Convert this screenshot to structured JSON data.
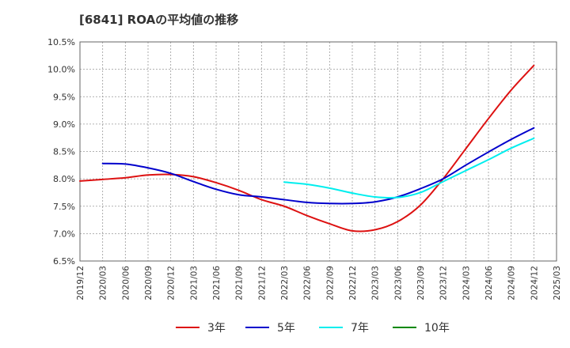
{
  "title": "[6841]  ROAの平均値の推移",
  "chart_data": {
    "type": "line",
    "title": "[6841]  ROAの平均値の推移",
    "xlabel": "",
    "ylabel": "",
    "x": [
      "2019/12",
      "2020/03",
      "2020/06",
      "2020/09",
      "2020/12",
      "2021/03",
      "2021/06",
      "2021/09",
      "2021/12",
      "2022/03",
      "2022/06",
      "2022/09",
      "2022/12",
      "2023/03",
      "2023/06",
      "2023/09",
      "2023/12",
      "2024/03",
      "2024/06",
      "2024/09",
      "2024/12",
      "2025/03"
    ],
    "y_ticks": [
      "6.5%",
      "7.0%",
      "7.5%",
      "8.0%",
      "8.5%",
      "9.0%",
      "9.5%",
      "10.0%",
      "10.5%"
    ],
    "ylim": [
      6.5,
      10.5
    ],
    "grid": true,
    "legend_position": "bottom",
    "series": [
      {
        "name": "3年",
        "color": "#dd1111",
        "values": [
          7.96,
          7.99,
          8.02,
          8.07,
          8.08,
          8.04,
          7.93,
          7.79,
          7.62,
          7.5,
          7.33,
          7.18,
          7.05,
          7.07,
          7.22,
          7.52,
          8.0,
          8.55,
          9.1,
          9.62,
          10.07,
          null
        ]
      },
      {
        "name": "5年",
        "color": "#0000cc",
        "values": [
          null,
          8.28,
          8.27,
          8.2,
          8.1,
          7.95,
          7.81,
          7.71,
          7.67,
          7.62,
          7.57,
          7.55,
          7.55,
          7.58,
          7.67,
          7.82,
          8.0,
          8.25,
          8.49,
          8.72,
          8.93,
          null
        ]
      },
      {
        "name": "7年",
        "color": "#00eeee",
        "values": [
          null,
          null,
          null,
          null,
          null,
          null,
          null,
          null,
          null,
          7.94,
          7.9,
          7.83,
          7.74,
          7.67,
          7.66,
          7.75,
          7.95,
          8.15,
          8.35,
          8.56,
          8.74,
          null
        ]
      },
      {
        "name": "10年",
        "color": "#008800",
        "values": [
          null,
          null,
          null,
          null,
          null,
          null,
          null,
          null,
          null,
          null,
          null,
          null,
          null,
          null,
          null,
          null,
          null,
          null,
          null,
          null,
          null,
          null
        ]
      }
    ]
  }
}
